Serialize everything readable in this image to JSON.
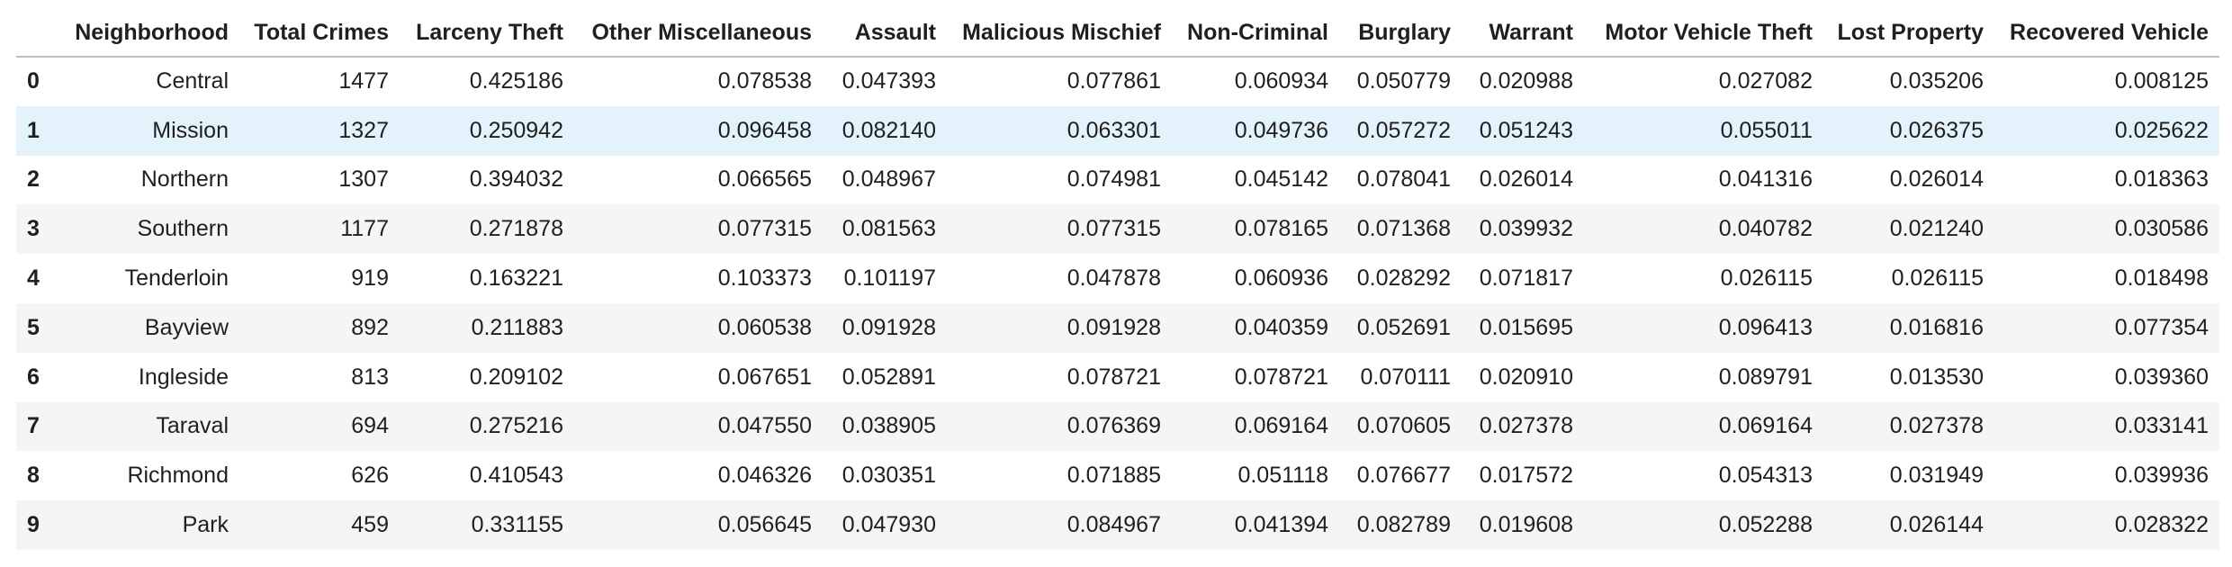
{
  "table": {
    "index_header": "",
    "columns": [
      "Neighborhood",
      "Total Crimes",
      "Larceny Theft",
      "Other Miscellaneous",
      "Assault",
      "Malicious Mischief",
      "Non-Criminal",
      "Burglary",
      "Warrant",
      "Motor Vehicle Theft",
      "Lost Property",
      "Recovered Vehicle"
    ],
    "highlighted_row": 1,
    "rows": [
      {
        "index": "0",
        "cells": [
          "Central",
          "1477",
          "0.425186",
          "0.078538",
          "0.047393",
          "0.077861",
          "0.060934",
          "0.050779",
          "0.020988",
          "0.027082",
          "0.035206",
          "0.008125"
        ]
      },
      {
        "index": "1",
        "cells": [
          "Mission",
          "1327",
          "0.250942",
          "0.096458",
          "0.082140",
          "0.063301",
          "0.049736",
          "0.057272",
          "0.051243",
          "0.055011",
          "0.026375",
          "0.025622"
        ]
      },
      {
        "index": "2",
        "cells": [
          "Northern",
          "1307",
          "0.394032",
          "0.066565",
          "0.048967",
          "0.074981",
          "0.045142",
          "0.078041",
          "0.026014",
          "0.041316",
          "0.026014",
          "0.018363"
        ]
      },
      {
        "index": "3",
        "cells": [
          "Southern",
          "1177",
          "0.271878",
          "0.077315",
          "0.081563",
          "0.077315",
          "0.078165",
          "0.071368",
          "0.039932",
          "0.040782",
          "0.021240",
          "0.030586"
        ]
      },
      {
        "index": "4",
        "cells": [
          "Tenderloin",
          "919",
          "0.163221",
          "0.103373",
          "0.101197",
          "0.047878",
          "0.060936",
          "0.028292",
          "0.071817",
          "0.026115",
          "0.026115",
          "0.018498"
        ]
      },
      {
        "index": "5",
        "cells": [
          "Bayview",
          "892",
          "0.211883",
          "0.060538",
          "0.091928",
          "0.091928",
          "0.040359",
          "0.052691",
          "0.015695",
          "0.096413",
          "0.016816",
          "0.077354"
        ]
      },
      {
        "index": "6",
        "cells": [
          "Ingleside",
          "813",
          "0.209102",
          "0.067651",
          "0.052891",
          "0.078721",
          "0.078721",
          "0.070111",
          "0.020910",
          "0.089791",
          "0.013530",
          "0.039360"
        ]
      },
      {
        "index": "7",
        "cells": [
          "Taraval",
          "694",
          "0.275216",
          "0.047550",
          "0.038905",
          "0.076369",
          "0.069164",
          "0.070605",
          "0.027378",
          "0.069164",
          "0.027378",
          "0.033141"
        ]
      },
      {
        "index": "8",
        "cells": [
          "Richmond",
          "626",
          "0.410543",
          "0.046326",
          "0.030351",
          "0.071885",
          "0.051118",
          "0.076677",
          "0.017572",
          "0.054313",
          "0.031949",
          "0.039936"
        ]
      },
      {
        "index": "9",
        "cells": [
          "Park",
          "459",
          "0.331155",
          "0.056645",
          "0.047930",
          "0.084967",
          "0.041394",
          "0.082789",
          "0.019608",
          "0.052288",
          "0.026144",
          "0.028322"
        ]
      }
    ]
  }
}
